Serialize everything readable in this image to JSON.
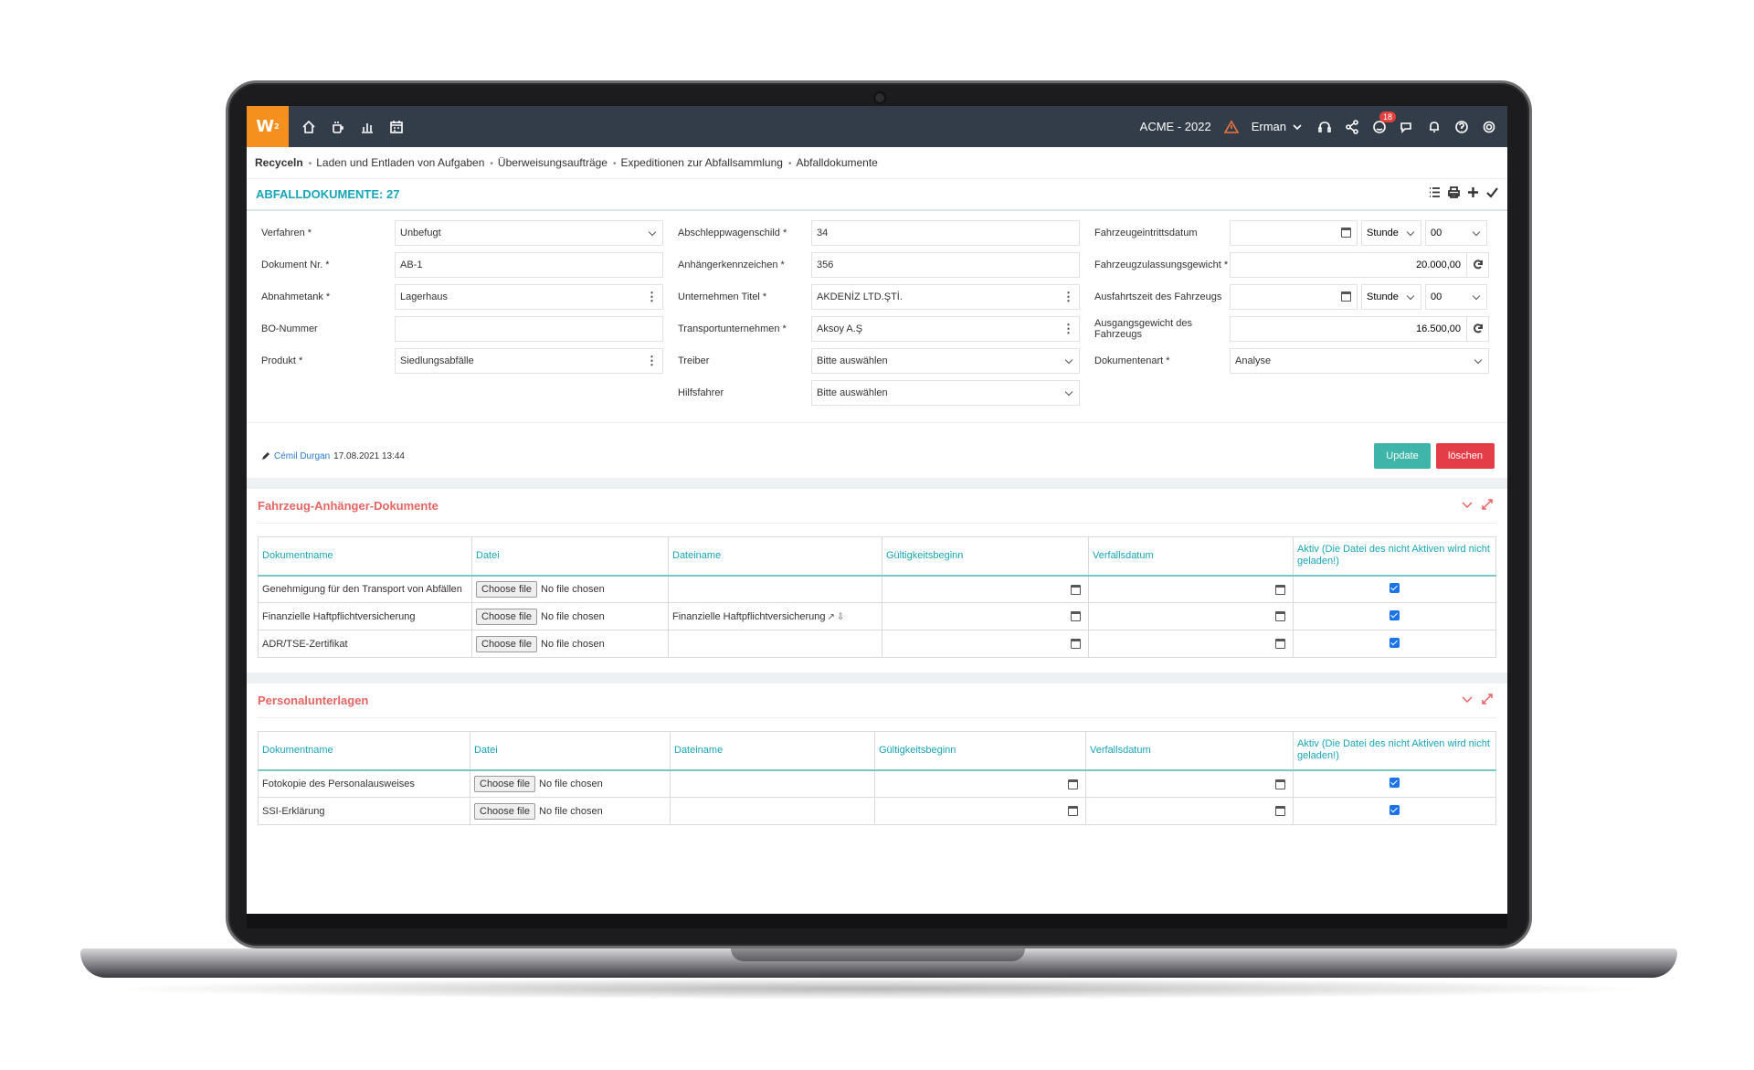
{
  "topbar": {
    "logo": "W",
    "logo_sup": "2",
    "company": "ACME - 2022",
    "user": "Erman",
    "notif_count": "18"
  },
  "breadcrumb": [
    "Recyceln",
    "Laden und Entladen von Aufgaben",
    "Überweisungsaufträge",
    "Expeditionen zur Abfallsammlung",
    "Abfalldokumente"
  ],
  "page": {
    "title": "ABFALLDOKUMENTE: 27"
  },
  "form": {
    "col1": [
      {
        "label": "Verfahren *",
        "value": "Unbefugt",
        "kind": "select"
      },
      {
        "label": "Dokument Nr. *",
        "value": "AB-1",
        "kind": "text"
      },
      {
        "label": "Abnahmetank *",
        "value": "Lagerhaus",
        "kind": "kebab"
      },
      {
        "label": "BO-Nummer",
        "value": "",
        "kind": "text"
      },
      {
        "label": "Produkt *",
        "value": "Siedlungsabfälle",
        "kind": "kebab"
      }
    ],
    "col2": [
      {
        "label": "Abschleppwagenschild *",
        "value": "34",
        "kind": "text"
      },
      {
        "label": "Anhängerkennzeichen *",
        "value": "356",
        "kind": "text"
      },
      {
        "label": "Unternehmen Titel *",
        "value": "AKDENİZ LTD.ŞTİ.",
        "kind": "kebab"
      },
      {
        "label": "Transportunternehmen *",
        "value": "Aksoy A.Ş",
        "kind": "kebab"
      },
      {
        "label": "Treiber",
        "value": "Bitte auswählen",
        "kind": "select"
      },
      {
        "label": "Hilfsfahrer",
        "value": "Bitte auswählen",
        "kind": "select"
      }
    ],
    "col3": {
      "entry_label": "Fahrzeugeintrittsdatum",
      "entry_hour": "Stunde",
      "entry_min": "00",
      "weight_in_label": "Fahrzeugzulassungsgewicht *",
      "weight_in": "20.000,00",
      "exit_label": "Ausfahrtszeit des Fahrzeugs",
      "exit_hour": "Stunde",
      "exit_min": "00",
      "weight_out_label": "Ausgangsgewicht des Fahrzeugs",
      "weight_out": "16.500,00",
      "doctype_label": "Dokumentenart *",
      "doctype": "Analyse"
    }
  },
  "meta": {
    "user": "Cémil Durgan",
    "date": "17.08.2021 13:44"
  },
  "buttons": {
    "update": "Update",
    "delete": "löschen"
  },
  "file_ui": {
    "choose": "Choose file",
    "none": "No file chosen"
  },
  "sections": [
    {
      "title": "Fahrzeug-Anhänger-Dokumente",
      "headers": [
        "Dokumentname",
        "Datei",
        "Dateiname",
        "Gültigkeitsbeginn",
        "Verfallsdatum",
        "Aktiv (Die Datei des nicht Aktiven wird nicht geladen!)"
      ],
      "rows": [
        {
          "name": "Genehmigung für den Transport von Abfällen",
          "filename": ""
        },
        {
          "name": "Finanzielle Haftpflichtversicherung",
          "filename": "Finanzielle Haftpflichtversicherung"
        },
        {
          "name": "ADR/TSE-Zertifikat",
          "filename": ""
        }
      ]
    },
    {
      "title": "Personalunterlagen",
      "headers": [
        "Dokumentname",
        "Datei",
        "Dateiname",
        "Gültigkeitsbeginn",
        "Verfallsdatum",
        "Aktiv (Die Datei des nicht Aktiven wird nicht geladen!)"
      ],
      "rows": [
        {
          "name": "Fotokopie des Personalausweises",
          "filename": ""
        },
        {
          "name": "SSI-Erklärung",
          "filename": ""
        }
      ]
    }
  ]
}
